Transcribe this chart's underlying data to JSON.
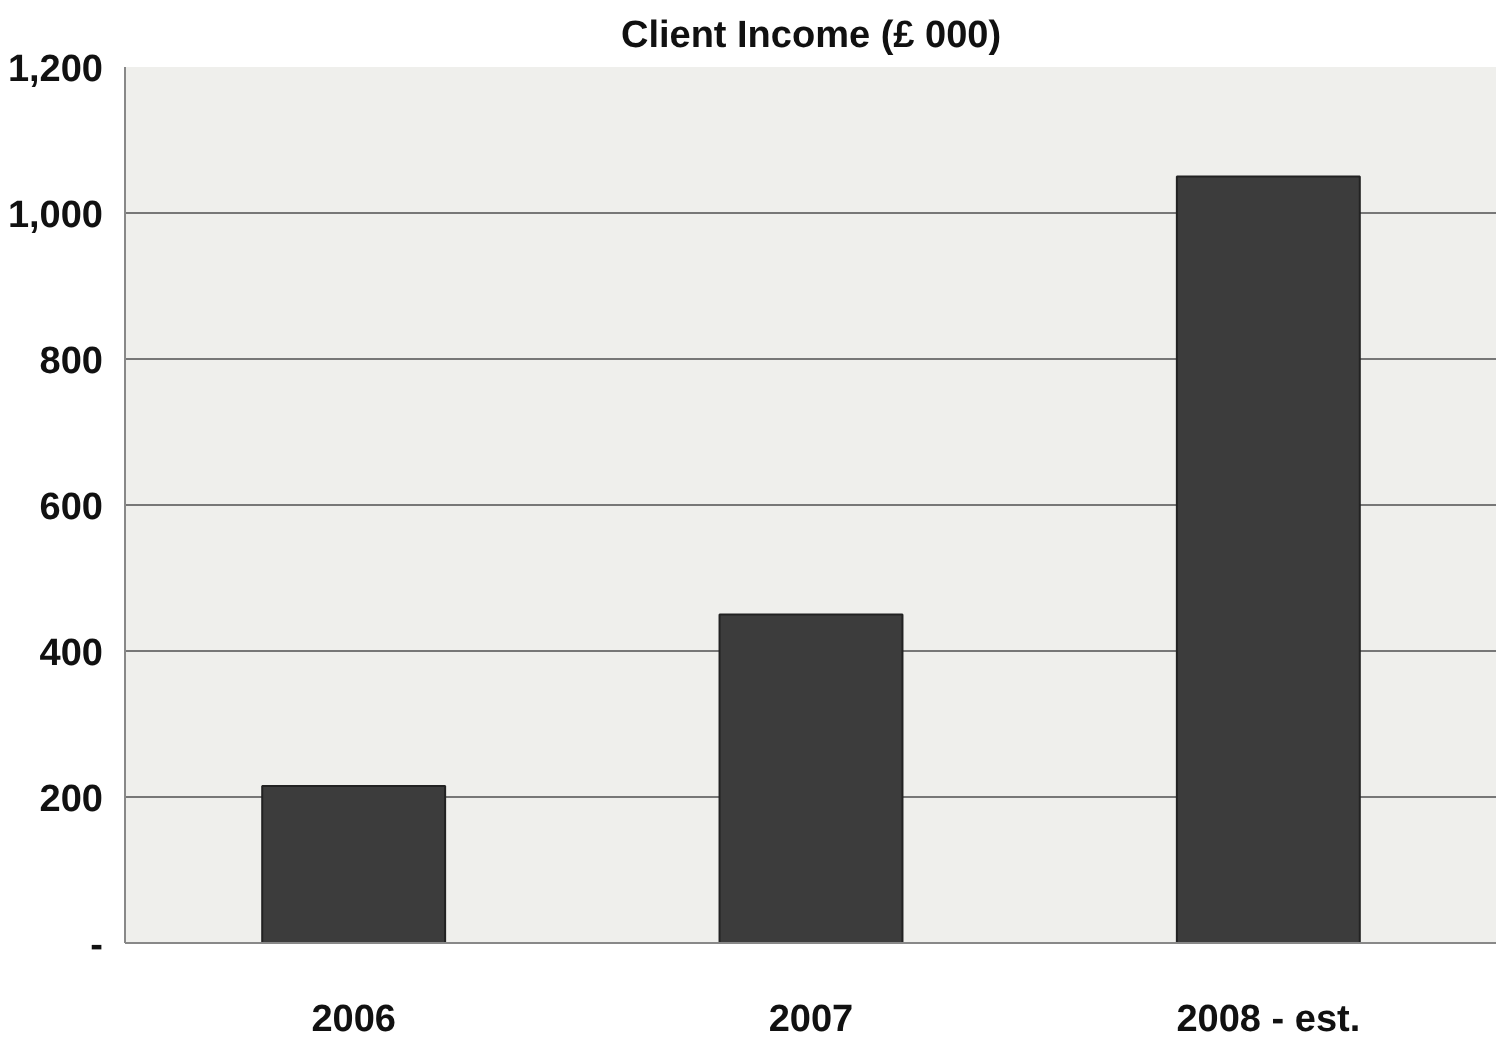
{
  "chart_data": {
    "type": "bar",
    "title": "Client Income (£ 000)",
    "categories": [
      "2006",
      "2007",
      "2008 - est."
    ],
    "values": [
      215,
      450,
      1050
    ],
    "color": "#3c3c3c",
    "ylim": [
      0,
      1200
    ],
    "yticks": [
      {
        "value": 0,
        "label": "-"
      },
      {
        "value": 200,
        "label": "200"
      },
      {
        "value": 400,
        "label": "400"
      },
      {
        "value": 600,
        "label": "600"
      },
      {
        "value": 800,
        "label": "800"
      },
      {
        "value": 1000,
        "label": "1,000"
      },
      {
        "value": 1200,
        "label": "1,200"
      }
    ],
    "grid": "y"
  }
}
